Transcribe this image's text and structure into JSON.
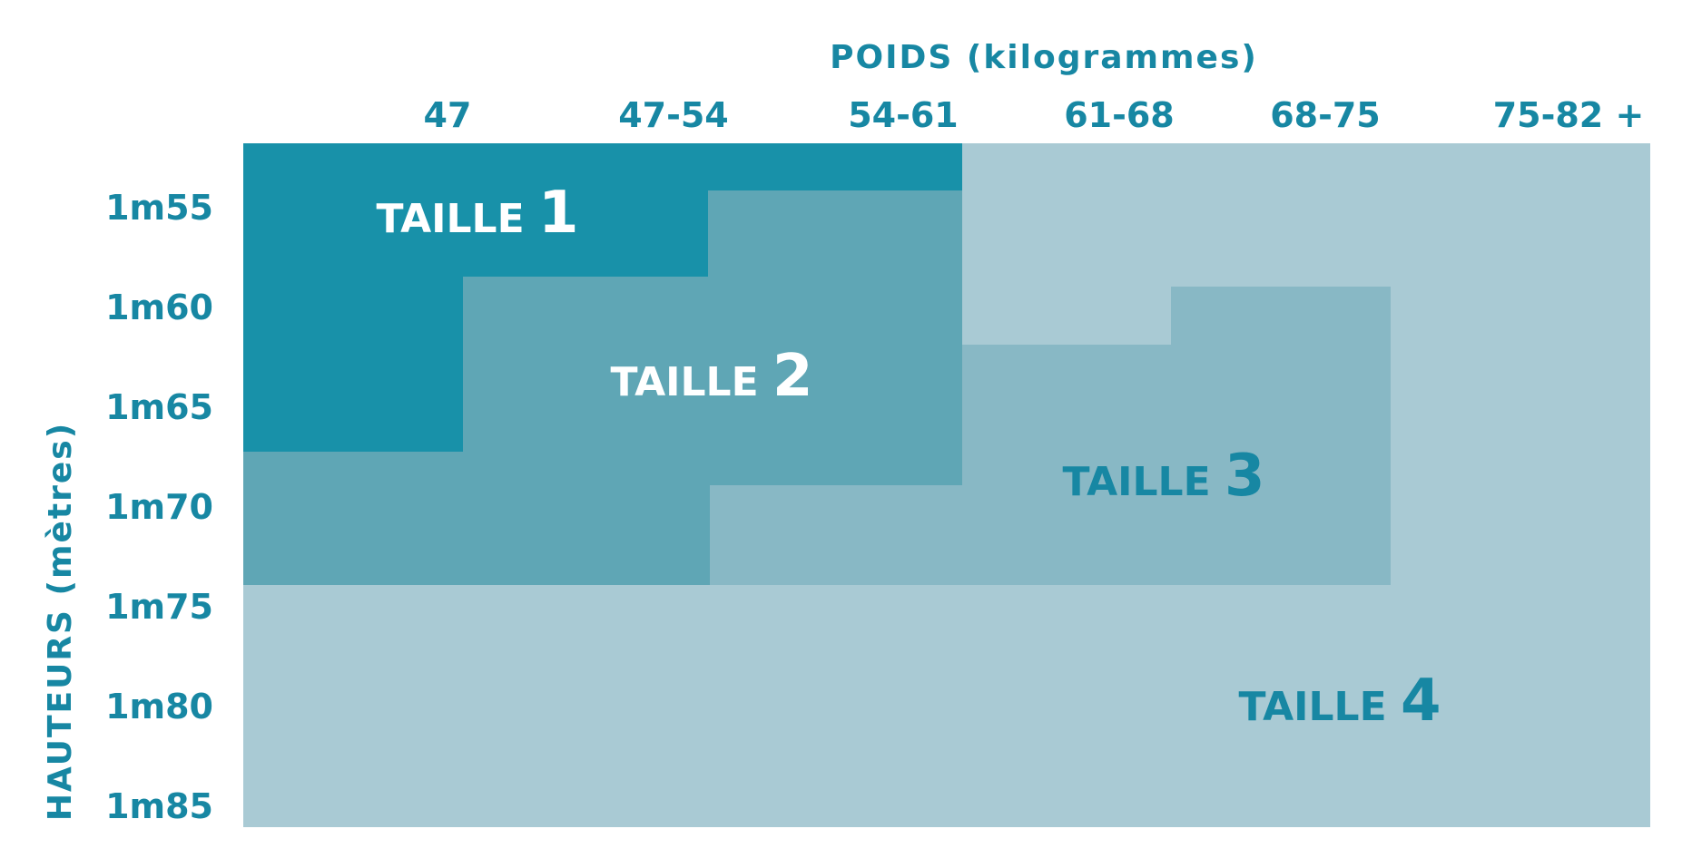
{
  "chart_data": {
    "type": "table",
    "xlabel": "POIDS (kilogrammes)",
    "ylabel": "HAUTEURS (mètres)",
    "columns": [
      "47",
      "47-54",
      "54-61",
      "61-68",
      "68-75",
      "75-82 +"
    ],
    "rows": [
      "1m55",
      "1m60",
      "1m65",
      "1m70",
      "1m75",
      "1m80",
      "1m85"
    ],
    "sizes": [
      {
        "label": "TAILLE",
        "number": "1",
        "color": "#1891a9",
        "text_color": "#ffffff"
      },
      {
        "label": "TAILLE",
        "number": "2",
        "color": "#5fa6b5",
        "text_color": "#ffffff"
      },
      {
        "label": "TAILLE",
        "number": "3",
        "color": "#88b8c5",
        "text_color": "#1787a3"
      },
      {
        "label": "TAILLE",
        "number": "4",
        "color": "#a9cad4",
        "text_color": "#1787a3"
      }
    ],
    "accent_color": "#1787a3"
  }
}
